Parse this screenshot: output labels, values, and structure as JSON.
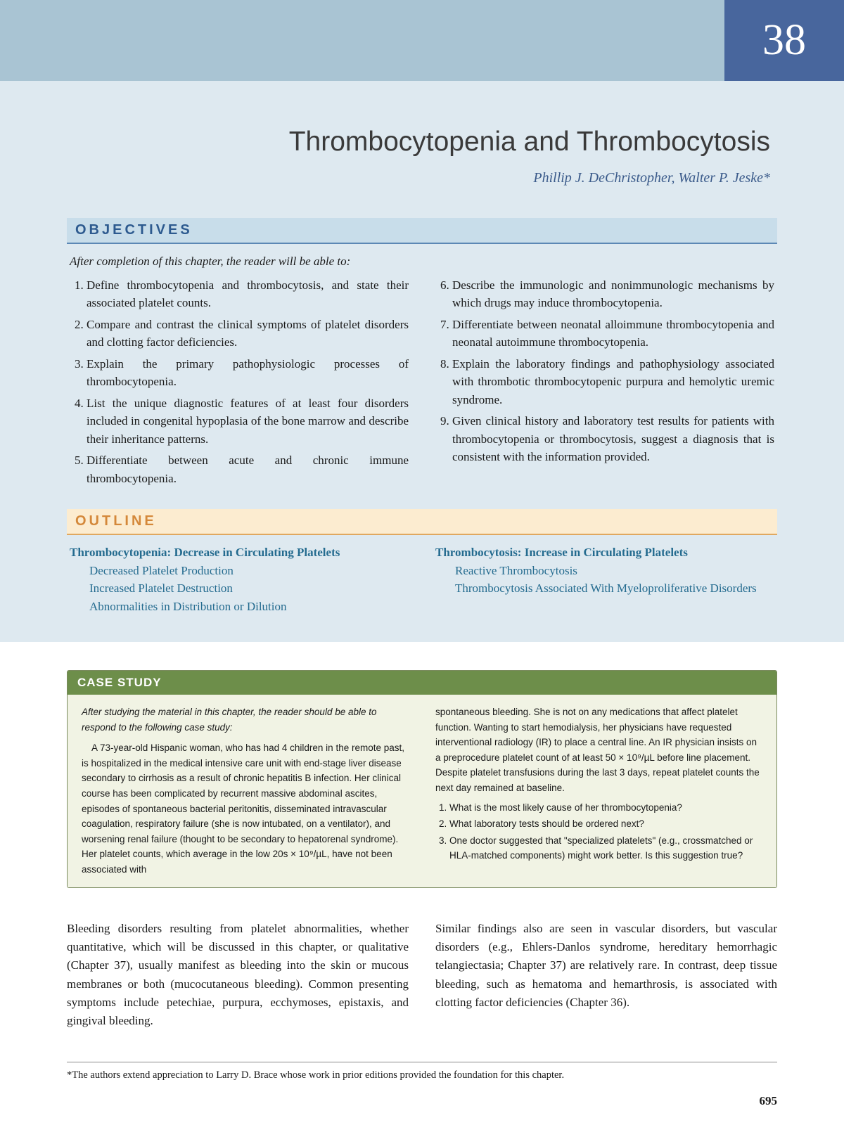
{
  "chapter_number": "38",
  "chapter_title": "Thrombocytopenia and Thrombocytosis",
  "authors": "Phillip J. DeChristopher, Walter P. Jeske*",
  "objectives": {
    "heading": "OBJECTIVES",
    "intro": "After completion of this chapter, the reader will be able to:",
    "left": [
      "Define thrombocytopenia and thrombocytosis, and state their associated platelet counts.",
      "Compare and contrast the clinical symptoms of platelet disorders and clotting factor deficiencies.",
      "Explain the primary pathophysiologic processes of thrombocytopenia.",
      "List the unique diagnostic features of at least four disorders included in congenital hypoplasia of the bone marrow and describe their inheritance patterns.",
      "Differentiate between acute and chronic immune thrombocytopenia."
    ],
    "right": [
      "Describe the immunologic and nonimmunologic mechanisms by which drugs may induce thrombocytopenia.",
      "Differentiate between neonatal alloimmune thrombocytopenia and neonatal autoimmune thrombocytopenia.",
      "Explain the laboratory findings and pathophysiology associated with thrombotic thrombocytopenic purpura and hemolytic uremic syndrome.",
      "Given clinical history and laboratory test results for patients with thrombocytopenia or thrombocytosis, suggest a diagnosis that is consistent with the information provided."
    ]
  },
  "outline": {
    "heading": "OUTLINE",
    "left": {
      "main": "Thrombocytopenia: Decrease in Circulating Platelets",
      "subs": [
        "Decreased Platelet Production",
        "Increased Platelet Destruction",
        "Abnormalities in Distribution or Dilution"
      ]
    },
    "right": {
      "main": "Thrombocytosis: Increase in Circulating Platelets",
      "subs": [
        "Reactive Thrombocytosis",
        "Thrombocytosis Associated With Myeloproliferative Disorders"
      ]
    }
  },
  "case_study": {
    "heading": "CASE STUDY",
    "intro": "After studying the material in this chapter, the reader should be able to respond to the following case study:",
    "col1": "A 73-year-old Hispanic woman, who has had 4 children in the remote past, is hospitalized in the medical intensive care unit with end-stage liver disease secondary to cirrhosis as a result of chronic hepatitis B infection. Her clinical course has been complicated by recurrent massive abdominal ascites, episodes of spontaneous bacterial peritonitis, disseminated intravascular coagulation, respiratory failure (she is now intubated, on a ventilator), and worsening renal failure (thought to be secondary to hepatorenal syndrome). Her platelet counts, which average in the low 20s × 10⁹/µL, have not been associated with",
    "col2_pre": "spontaneous bleeding. She is not on any medications that affect platelet function. Wanting to start hemodialysis, her physicians have requested interventional radiology (IR) to place a central line. An IR physician insists on a preprocedure platelet count of at least 50 × 10⁹/µL before line placement. Despite platelet transfusions during the last 3 days, repeat platelet counts the next day remained at baseline.",
    "questions": [
      "What is the most likely cause of her thrombocytopenia?",
      "What laboratory tests should be ordered next?",
      "One doctor suggested that \"specialized platelets\" (e.g., crossmatched or HLA-matched components) might work better. Is this suggestion true?"
    ]
  },
  "main_text": {
    "col1": "Bleeding disorders resulting from platelet abnormalities, whether quantitative, which will be discussed in this chapter, or qualitative (Chapter 37), usually manifest as bleeding into the skin or mucous membranes or both (mucocutaneous bleeding). Common presenting symptoms include petechiae, purpura, ecchymoses, epistaxis, and gingival bleeding.",
    "col2": "Similar findings also are seen in vascular disorders, but vascular disorders (e.g., Ehlers-Danlos syndrome, hereditary hemorrhagic telangiectasia; Chapter 37) are relatively rare. In contrast, deep tissue bleeding, such as hematoma and hemarthrosis, is associated with clotting factor deficiencies (Chapter 36)."
  },
  "footnote": "*The authors extend appreciation to Larry D. Brace whose work in prior editions provided the foundation for this chapter.",
  "page_number": "695"
}
